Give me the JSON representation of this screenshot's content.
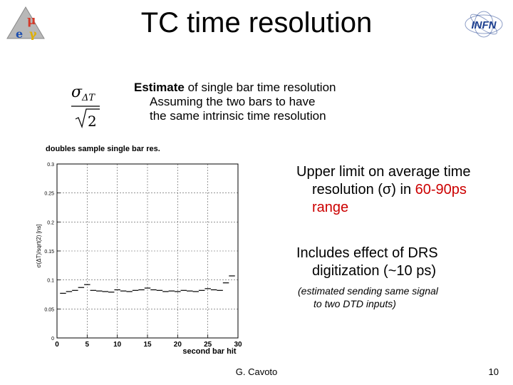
{
  "slide": {
    "title": "TC time resolution",
    "formula": {
      "numerator": "σΔT",
      "denominator": "√2"
    },
    "estimate": {
      "line1_bold": "Estimate",
      "line1_rest": " of  single bar time resolution",
      "line2": "Assuming the two bars to have",
      "line3": "the  same intrinsic time resolution"
    },
    "upper_limit": {
      "line1": "Upper limit on average time",
      "line2_prefix": "resolution (σ) in ",
      "line2_red": "60-90ps",
      "line3_red": "range"
    },
    "includes": {
      "line1": "Includes effect of DRS",
      "line2": "digitization  (~10 ps)"
    },
    "estimated_note": {
      "line1": "(estimated sending same signal",
      "line2": "to two DTD inputs)"
    },
    "footer": {
      "author": "G. Cavoto",
      "page": "10"
    },
    "logos": {
      "left_text": "μ e γ",
      "right_text": "INFN"
    },
    "colors": {
      "accent_red": "#cc0000"
    }
  },
  "chart_data": {
    "type": "scatter",
    "title": "doubles sample single bar res.",
    "xlabel": "second bar hit",
    "ylabel": "σ(ΔT)/sqrt(2) [ns]",
    "xlim": [
      0,
      30
    ],
    "ylim": [
      0,
      0.3
    ],
    "x_ticks": [
      0,
      5,
      10,
      15,
      20,
      25,
      30
    ],
    "y_ticks": [
      0,
      0.05,
      0.1,
      0.15,
      0.2,
      0.25,
      0.3
    ],
    "y_tick_labels": [
      "0",
      "0.05",
      "0.1",
      "0.15",
      "0.2",
      "0.25",
      "0.3"
    ],
    "grid": true,
    "series": [
      {
        "x": [
          1,
          2,
          3,
          4,
          5,
          6,
          7,
          8,
          9,
          10,
          11,
          12,
          13,
          14,
          15,
          16,
          17,
          18,
          19,
          20,
          21,
          22,
          23,
          24,
          25,
          26,
          27,
          28,
          29
        ],
        "y": [
          0.077,
          0.08,
          0.082,
          0.087,
          0.092,
          0.082,
          0.081,
          0.08,
          0.079,
          0.083,
          0.081,
          0.08,
          0.082,
          0.083,
          0.086,
          0.083,
          0.082,
          0.08,
          0.081,
          0.08,
          0.082,
          0.081,
          0.08,
          0.082,
          0.085,
          0.083,
          0.082,
          0.095,
          0.107
        ]
      }
    ]
  }
}
